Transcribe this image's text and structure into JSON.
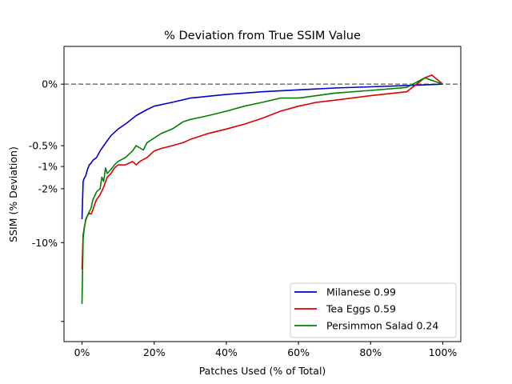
{
  "chart_data": {
    "type": "line",
    "title": "% Deviation from True SSIM Value",
    "xlabel": "Patches Used (% of Total)",
    "ylabel": "SSIM (% Deviation)",
    "x_unit": "percent",
    "xlim": [
      -5,
      105
    ],
    "x_ticks": [
      0,
      20,
      40,
      60,
      80,
      100
    ],
    "x_tick_labels": [
      "0%",
      "20%",
      "40%",
      "60%",
      "80%",
      "100%"
    ],
    "y_scale": "symlog",
    "ylim": [
      -180,
      0.2
    ],
    "y_ticks": [
      0,
      -0.5,
      -1,
      -2,
      -10,
      -100
    ],
    "y_tick_labels": [
      "0%",
      "-0.5%",
      "-1%",
      "-2%",
      "-10%",
      ""
    ],
    "reference_line": {
      "y": 0,
      "style": "dashed",
      "color": "#808080"
    },
    "grid": false,
    "legend_position": "lower-right",
    "series": [
      {
        "name": "Milanese 0.99",
        "color": "#0000cc",
        "x": [
          0,
          0.3,
          0.6,
          1,
          1.5,
          2,
          2.5,
          3,
          4,
          5,
          6,
          7,
          8,
          10,
          12,
          15,
          18,
          20,
          25,
          30,
          40,
          50,
          60,
          70,
          80,
          90,
          100
        ],
        "y": [
          -5,
          -1.6,
          -1.45,
          -1.35,
          -1.1,
          -0.95,
          -0.9,
          -0.82,
          -0.75,
          -0.6,
          -0.5,
          -0.42,
          -0.35,
          -0.27,
          -0.22,
          -0.15,
          -0.11,
          -0.09,
          -0.07,
          -0.05,
          -0.035,
          -0.025,
          -0.018,
          -0.012,
          -0.008,
          -0.004,
          0
        ]
      },
      {
        "name": "Tea Eggs 0.59",
        "color": "#dd0000",
        "x": [
          0,
          0.3,
          0.6,
          1,
          1.5,
          2,
          2.5,
          3,
          3.5,
          4,
          5,
          6,
          7,
          8,
          9,
          10,
          12,
          14,
          15,
          16,
          18,
          20,
          22,
          25,
          28,
          30,
          35,
          40,
          45,
          50,
          55,
          60,
          65,
          70,
          80,
          90,
          95,
          97,
          100
        ],
        "y": [
          -22,
          -8,
          -6.5,
          -5.2,
          -4.5,
          -4.2,
          -4.3,
          -3.8,
          -3.2,
          -2.8,
          -2.4,
          -1.9,
          -1.4,
          -1.25,
          -1.05,
          -0.95,
          -0.95,
          -0.85,
          -0.95,
          -0.85,
          -0.75,
          -0.6,
          -0.55,
          -0.5,
          -0.45,
          -0.4,
          -0.32,
          -0.27,
          -0.22,
          -0.17,
          -0.12,
          -0.09,
          -0.07,
          -0.06,
          -0.04,
          -0.025,
          0.02,
          0.03,
          0
        ]
      },
      {
        "name": "Persimmon Salad 0.24",
        "color": "#008000",
        "x": [
          0,
          0.3,
          0.6,
          1,
          1.5,
          2,
          2.5,
          3,
          3.5,
          4,
          5,
          5.5,
          6,
          6.5,
          7,
          8,
          9,
          10,
          12,
          14,
          15,
          17,
          18,
          20,
          22,
          25,
          28,
          30,
          35,
          40,
          45,
          50,
          55,
          60,
          65,
          70,
          80,
          90,
          95,
          100
        ],
        "y": [
          -60,
          -9,
          -6.5,
          -5,
          -4.5,
          -4,
          -3.6,
          -2.8,
          -2.5,
          -2.2,
          -2,
          -1.4,
          -1.6,
          -1.05,
          -1.25,
          -1.1,
          -0.95,
          -0.85,
          -0.75,
          -0.6,
          -0.5,
          -0.58,
          -0.45,
          -0.38,
          -0.32,
          -0.27,
          -0.2,
          -0.18,
          -0.15,
          -0.12,
          -0.09,
          -0.07,
          -0.05,
          -0.05,
          -0.04,
          -0.03,
          -0.02,
          -0.01,
          0.02,
          0
        ]
      }
    ]
  }
}
